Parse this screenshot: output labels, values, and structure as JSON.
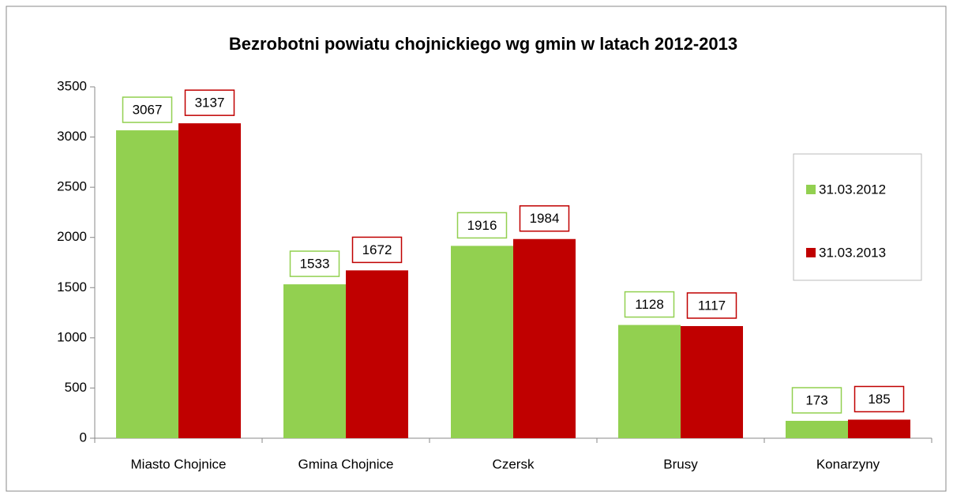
{
  "chart_data": {
    "type": "bar",
    "title": "Bezrobotni powiatu chojnickiego wg gmin w latach 2012-2013",
    "categories": [
      "Miasto Chojnice",
      "Gmina Chojnice",
      "Czersk",
      "Brusy",
      "Konarzyny"
    ],
    "series": [
      {
        "name": "31.03.2012",
        "color": "#92d050",
        "values": [
          3067,
          1533,
          1916,
          1128,
          173
        ]
      },
      {
        "name": "31.03.2013",
        "color": "#c00000",
        "values": [
          3137,
          1672,
          1984,
          1117,
          185
        ]
      }
    ],
    "ylim": [
      0,
      3500
    ],
    "yticks": [
      0,
      500,
      1000,
      1500,
      2000,
      2500,
      3000,
      3500
    ],
    "grid": false,
    "legend": "right"
  }
}
